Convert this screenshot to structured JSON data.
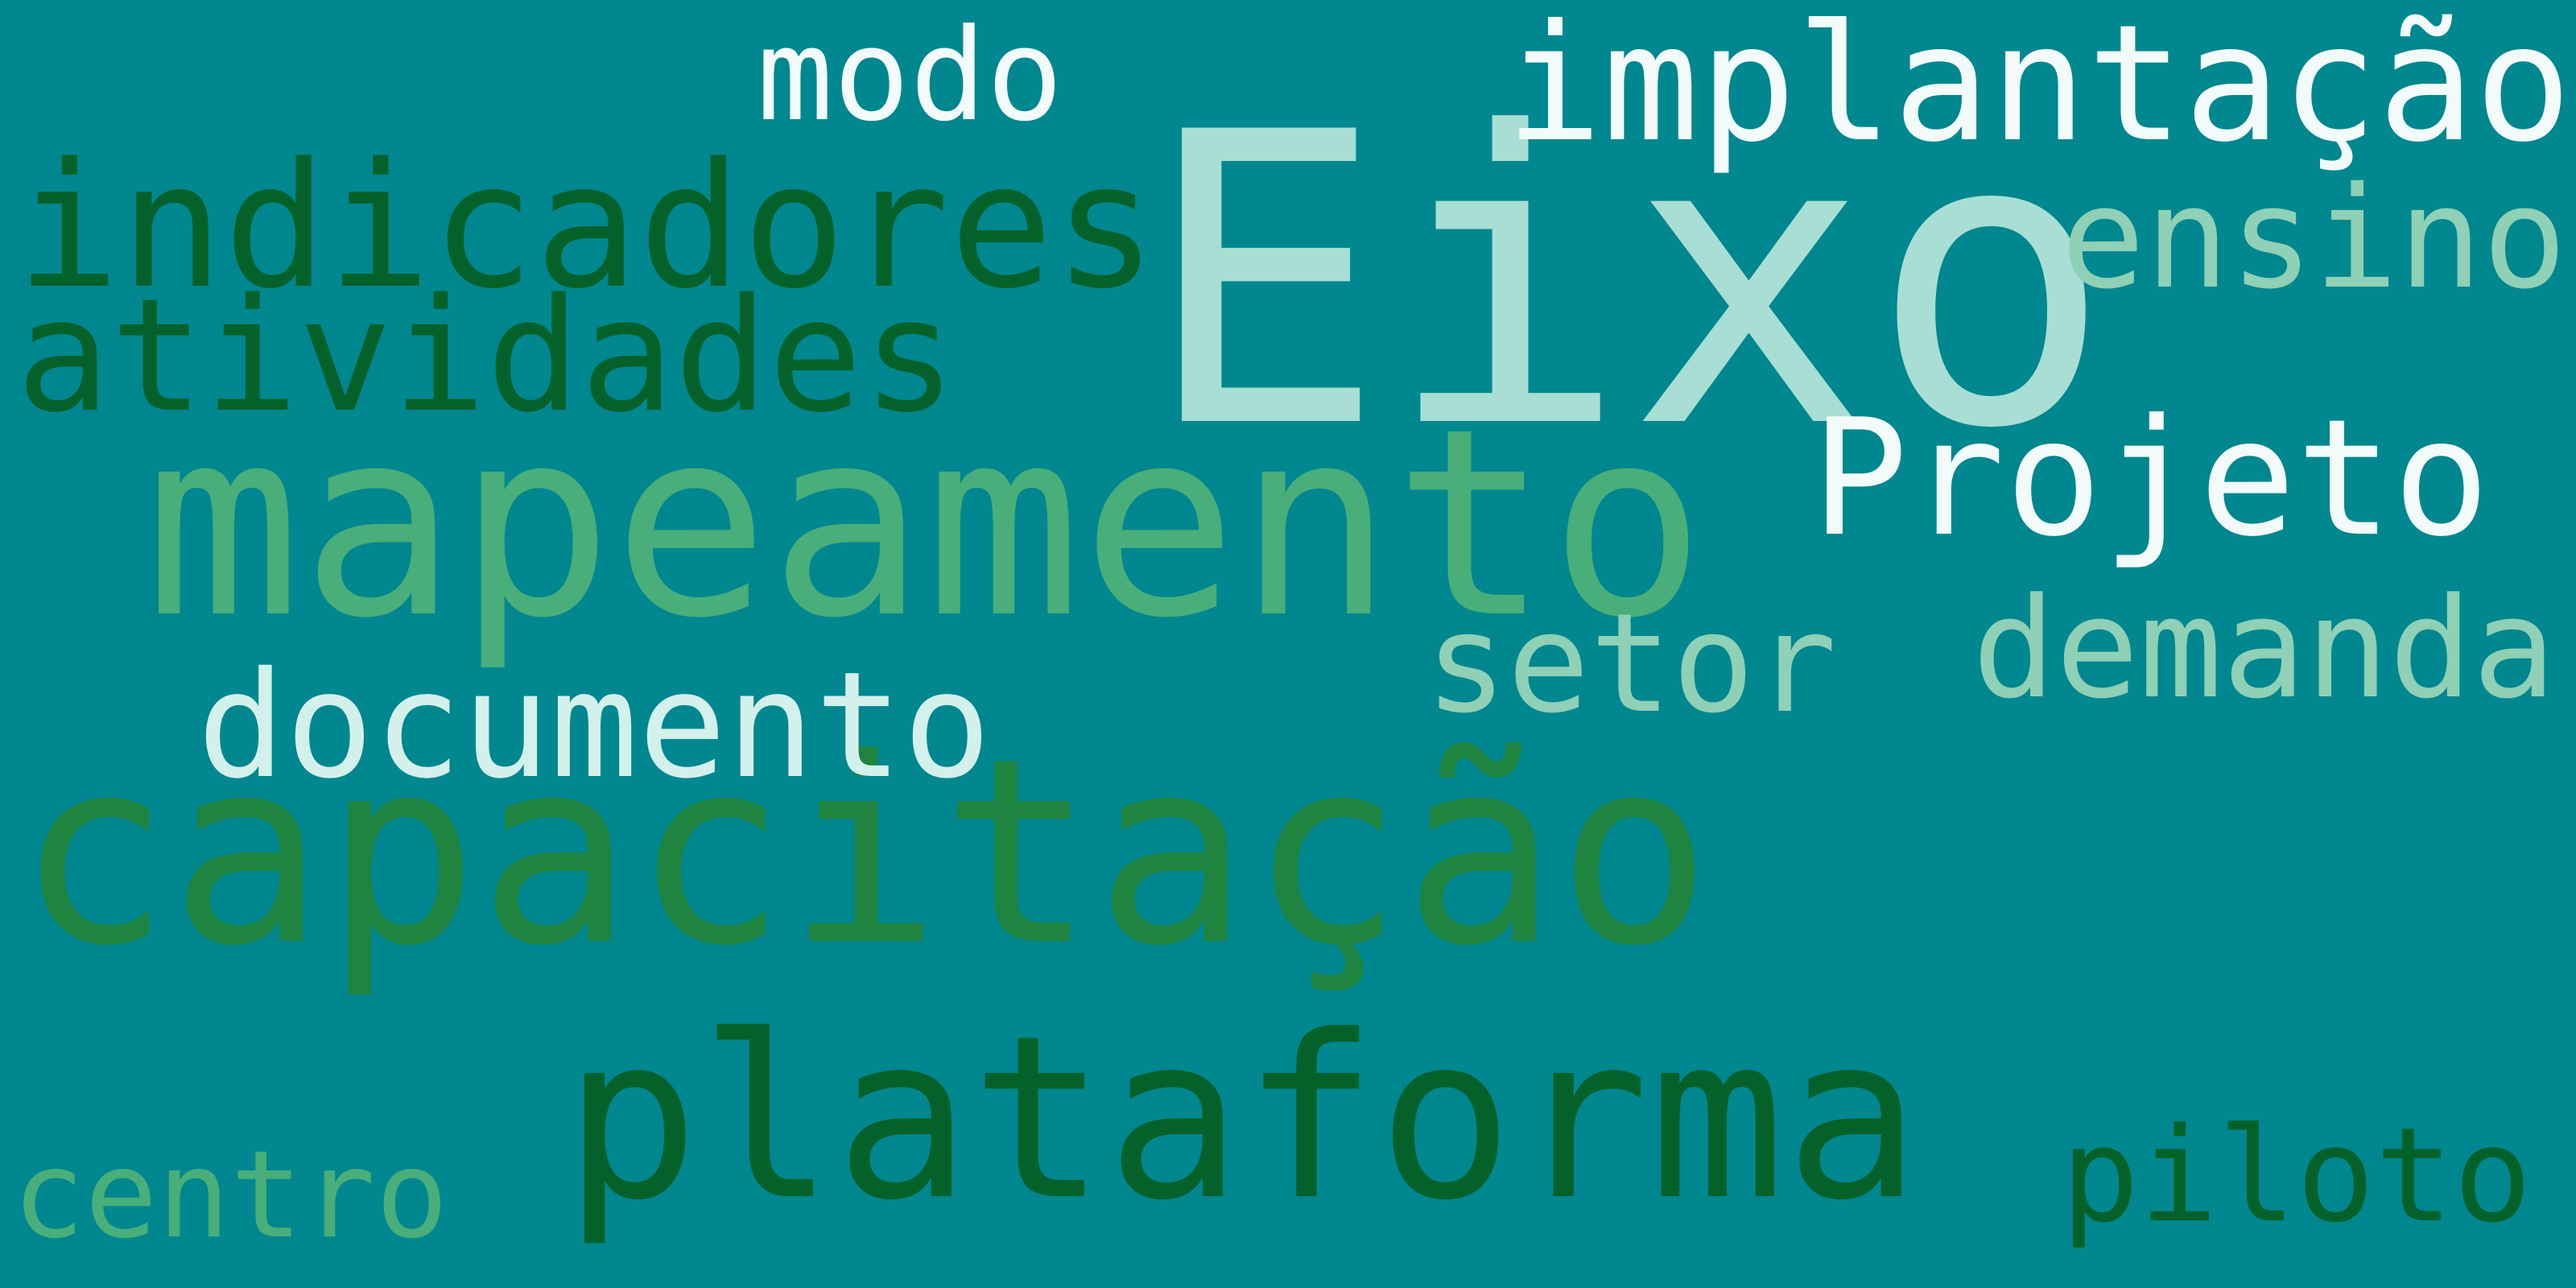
{
  "background_color": "#00878f",
  "words": [
    {
      "id": "capacitacao",
      "text": "capacitação",
      "color": "#1f843f"
    },
    {
      "id": "eixo",
      "text": "Eixo",
      "color": "#a8ded3"
    },
    {
      "id": "mapeamento",
      "text": "mapeamento",
      "color": "#4aae7a"
    },
    {
      "id": "plataforma",
      "text": "plataforma",
      "color": "#05612a"
    },
    {
      "id": "indicadores",
      "text": "indicadores",
      "color": "#05612a"
    },
    {
      "id": "implantacao",
      "text": "implantação",
      "color": "#f2fbf9"
    },
    {
      "id": "atividades",
      "text": "atividades",
      "color": "#05612a"
    },
    {
      "id": "projeto",
      "text": "Projeto",
      "color": "#f2fbf9"
    },
    {
      "id": "documento",
      "text": "documento",
      "color": "#d4f0eb"
    },
    {
      "id": "demanda",
      "text": "demanda",
      "color": "#8fd0b6"
    },
    {
      "id": "ensino",
      "text": "ensino",
      "color": "#8fd0b6"
    },
    {
      "id": "setor",
      "text": "setor",
      "color": "#8fd0b6"
    },
    {
      "id": "piloto",
      "text": "piloto",
      "color": "#05612a"
    },
    {
      "id": "centro",
      "text": "centro",
      "color": "#4aae7a"
    },
    {
      "id": "modo",
      "text": "modo",
      "color": "#f2fbf9"
    }
  ]
}
